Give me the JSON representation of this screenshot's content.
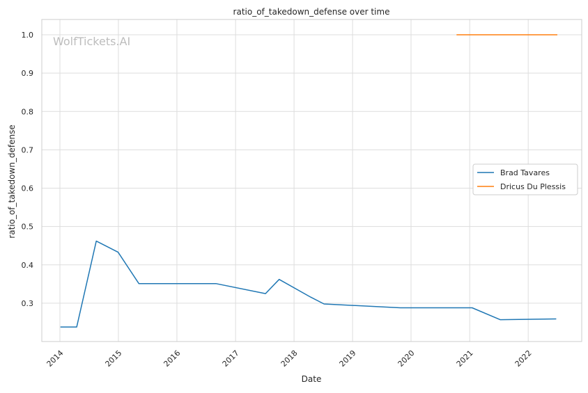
{
  "chart_data": {
    "type": "line",
    "title": "ratio_of_takedown_defense over time",
    "xlabel": "Date",
    "ylabel": "ratio_of_takedown_defense",
    "watermark": "WolfTickets.AI",
    "x_ticks": [
      "2014",
      "2015",
      "2016",
      "2017",
      "2018",
      "2019",
      "2020",
      "2021",
      "2022"
    ],
    "y_ticks": [
      "0.3",
      "0.4",
      "0.5",
      "0.6",
      "0.7",
      "0.8",
      "0.9",
      "1.0"
    ],
    "xlim": [
      "2013-09-10",
      "2022-12-01"
    ],
    "ylim": [
      0.2,
      1.04
    ],
    "grid": true,
    "legend_position": "center-right",
    "series": [
      {
        "name": "Brad Tavares",
        "color": "#1f77b4",
        "points": [
          {
            "x": "2014-01-04",
            "y": 0.238
          },
          {
            "x": "2014-04-16",
            "y": 0.238
          },
          {
            "x": "2014-08-16",
            "y": 0.462
          },
          {
            "x": "2014-12-30",
            "y": 0.433
          },
          {
            "x": "2015-05-09",
            "y": 0.351
          },
          {
            "x": "2016-09-03",
            "y": 0.351
          },
          {
            "x": "2017-07-07",
            "y": 0.325
          },
          {
            "x": "2017-09-30",
            "y": 0.362
          },
          {
            "x": "2018-04-14",
            "y": 0.316
          },
          {
            "x": "2018-07-07",
            "y": 0.298
          },
          {
            "x": "2019-10-26",
            "y": 0.288
          },
          {
            "x": "2021-01-16",
            "y": 0.288
          },
          {
            "x": "2021-07-10",
            "y": 0.257
          },
          {
            "x": "2022-06-25",
            "y": 0.259
          }
        ]
      },
      {
        "name": "Dricus Du Plessis",
        "color": "#ff7f0e",
        "points": [
          {
            "x": "2020-10-11",
            "y": 1.0
          },
          {
            "x": "2022-07-02",
            "y": 1.0
          }
        ]
      }
    ]
  }
}
